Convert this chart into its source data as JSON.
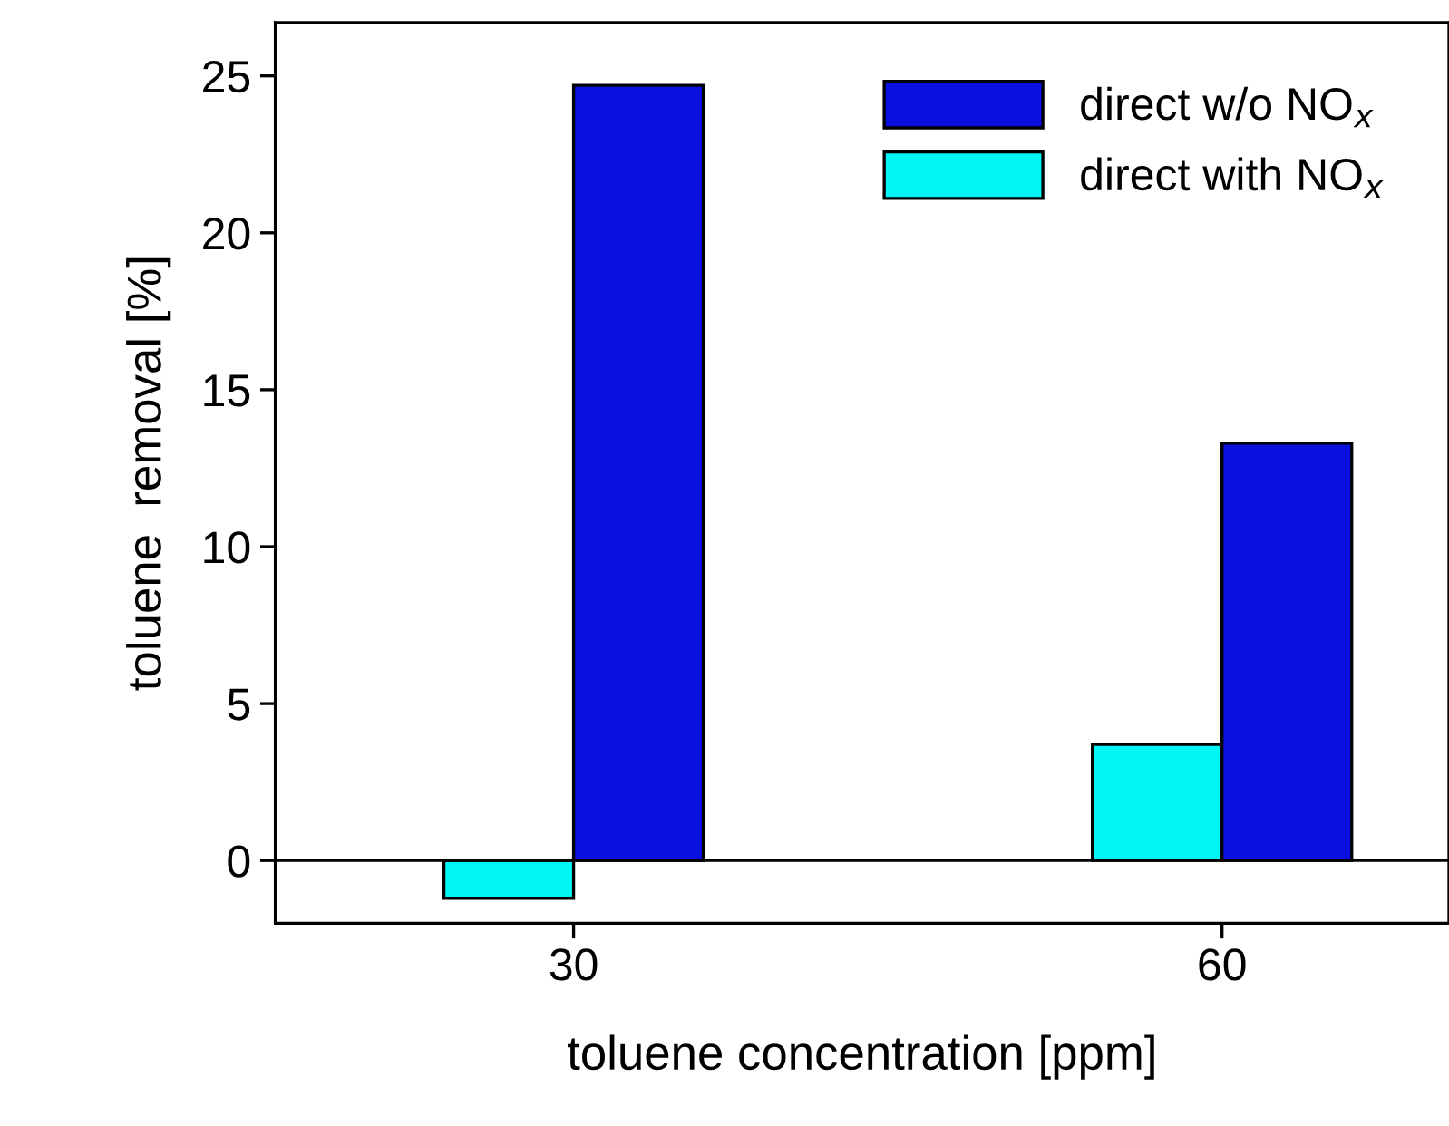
{
  "chart_data": {
    "type": "bar",
    "xlabel": "toluene concentration [ppm]",
    "ylabel": "toluene  removal [%]",
    "categories": [
      "30",
      "60"
    ],
    "series": [
      {
        "name": "direct with NO$_{x}$",
        "color": "#00f5f5",
        "values": [
          -1.2,
          3.7
        ]
      },
      {
        "name": "direct w/o NO$_{x}$",
        "color": "#0a10e0",
        "values": [
          24.7,
          13.3
        ]
      }
    ],
    "ylim": [
      -2.0,
      26.7
    ],
    "yticks": [
      0,
      5,
      10,
      15,
      20,
      25
    ],
    "ref_lines": [
      {
        "axis": "y",
        "value": 0,
        "label": null
      }
    ],
    "grid": false,
    "legend": "top right"
  }
}
